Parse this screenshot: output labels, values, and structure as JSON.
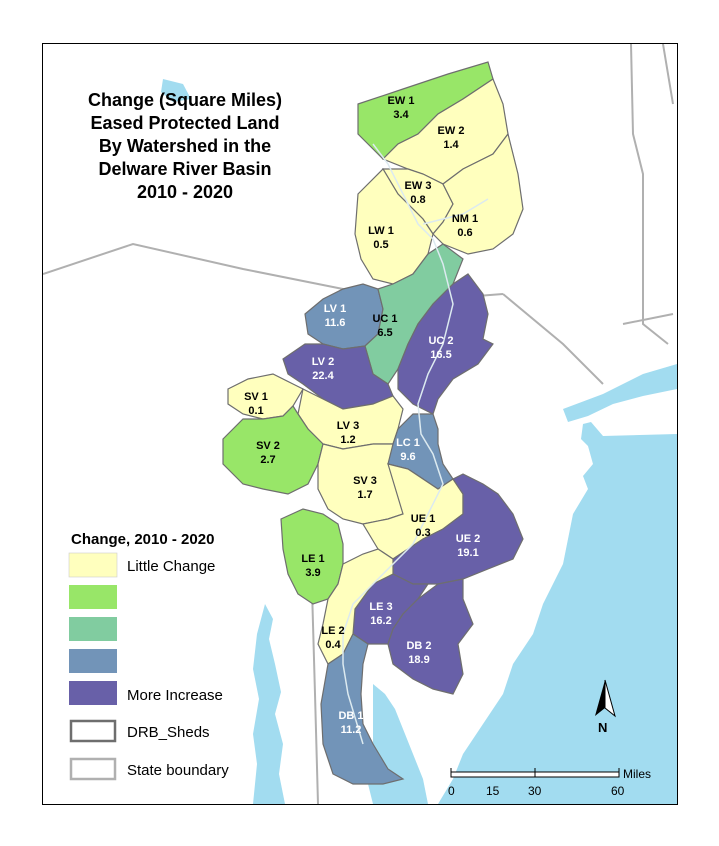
{
  "title": {
    "lines": [
      "Change (Square Miles)",
      "Eased Protected Land",
      "By Watershed  in the",
      "Delware River Basin",
      "2010 - 2020"
    ]
  },
  "colors": {
    "little_change": "#ffffbe",
    "class2": "#98e668",
    "class3": "#81cca0",
    "class4": "#7294b8",
    "more_increase": "#6860a8",
    "water": "#a2dcf0",
    "land": "#ffffff",
    "state_boundary": "#b0b0b0",
    "shed_outline": "#6e6e6e"
  },
  "watersheds": [
    {
      "id": "EW 1",
      "value": "3.4",
      "class": "class2"
    },
    {
      "id": "EW 2",
      "value": "1.4",
      "class": "little_change"
    },
    {
      "id": "EW 3",
      "value": "0.8",
      "class": "little_change"
    },
    {
      "id": "NM 1",
      "value": "0.6",
      "class": "little_change"
    },
    {
      "id": "LW 1",
      "value": "0.5",
      "class": "little_change"
    },
    {
      "id": "LV 1",
      "value": "11.6",
      "class": "class4"
    },
    {
      "id": "UC 1",
      "value": "6.5",
      "class": "class3"
    },
    {
      "id": "UC 2",
      "value": "16.5",
      "class": "more_increase"
    },
    {
      "id": "LV 2",
      "value": "22.4",
      "class": "more_increase"
    },
    {
      "id": "SV 1",
      "value": "0.1",
      "class": "little_change"
    },
    {
      "id": "LV 3",
      "value": "1.2",
      "class": "little_change"
    },
    {
      "id": "SV 2",
      "value": "2.7",
      "class": "class2"
    },
    {
      "id": "LC 1",
      "value": "9.6",
      "class": "class4"
    },
    {
      "id": "SV 3",
      "value": "1.7",
      "class": "little_change"
    },
    {
      "id": "UE 1",
      "value": "0.3",
      "class": "little_change"
    },
    {
      "id": "UE 2",
      "value": "19.1",
      "class": "more_increase"
    },
    {
      "id": "LE 1",
      "value": "3.9",
      "class": "class2"
    },
    {
      "id": "LE 3",
      "value": "16.2",
      "class": "more_increase"
    },
    {
      "id": "LE 2",
      "value": "0.4",
      "class": "little_change"
    },
    {
      "id": "DB 2",
      "value": "18.9",
      "class": "more_increase"
    },
    {
      "id": "DB 1",
      "value": "11.2",
      "class": "class4"
    }
  ],
  "legend": {
    "title": "Change, 2010 - 2020",
    "classes": [
      {
        "key": "little_change",
        "label": "Little Change"
      },
      {
        "key": "class2",
        "label": ""
      },
      {
        "key": "class3",
        "label": ""
      },
      {
        "key": "class4",
        "label": ""
      },
      {
        "key": "more_increase",
        "label": "More Increase"
      }
    ],
    "sheds_label": "DRB_Sheds",
    "state_label": "State boundary"
  },
  "scale": {
    "unit": "Miles",
    "ticks": [
      "0",
      "15",
      "30",
      "60"
    ]
  },
  "north": {
    "label": "N"
  }
}
